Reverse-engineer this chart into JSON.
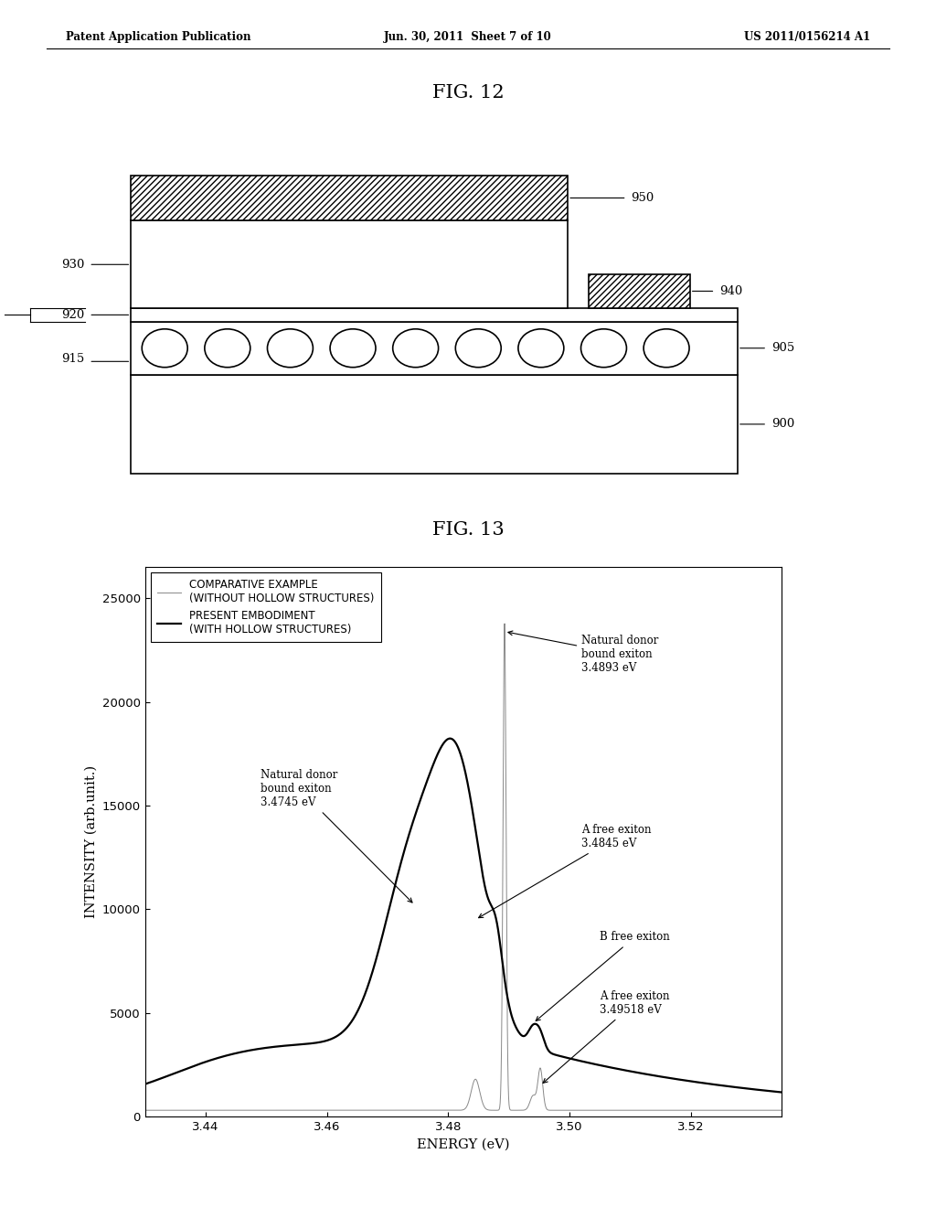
{
  "header_left": "Patent Application Publication",
  "header_mid": "Jun. 30, 2011  Sheet 7 of 10",
  "header_right": "US 2011/0156214 A1",
  "fig12_title": "FIG. 12",
  "fig13_title": "FIG. 13",
  "graph_xlim": [
    3.43,
    3.535
  ],
  "graph_ylim": [
    0,
    26500
  ],
  "graph_xticks": [
    3.44,
    3.46,
    3.48,
    3.5,
    3.52
  ],
  "graph_yticks": [
    0,
    5000,
    10000,
    15000,
    20000,
    25000
  ],
  "xlabel": "ENERGY (eV)",
  "ylabel": "INTENSITY (arb.unit.)",
  "bg_color": "#ffffff"
}
